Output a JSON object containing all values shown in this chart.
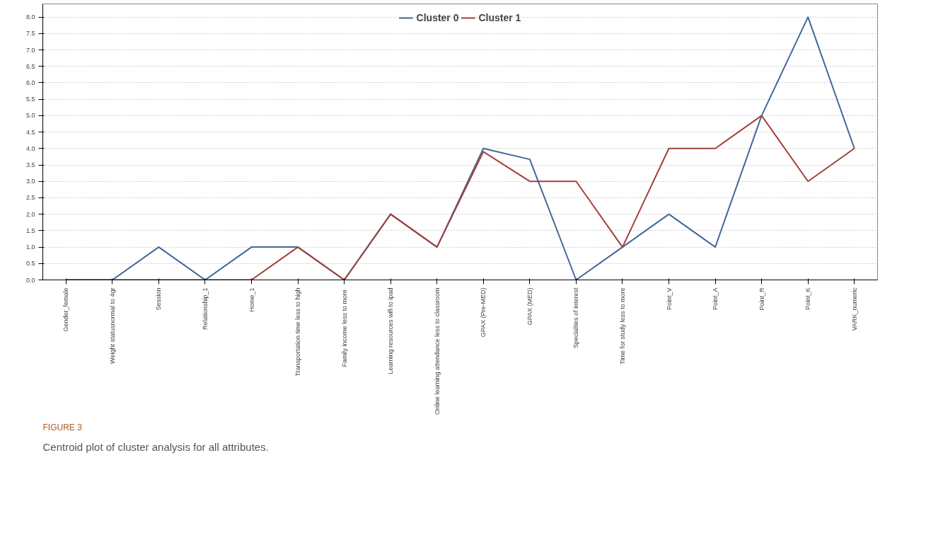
{
  "chart_data": {
    "type": "line",
    "categories": [
      "Gender_female",
      "Weight statusnormal to 4gr",
      "Session",
      "Relationship_1",
      "Home_1",
      "Transportation time less to high",
      "Family income  less to more",
      "Learning resources wifi to ipad",
      "Online learning attendance less to classroom",
      "GPAX (Pre-MED)",
      "GPAX (MED)",
      "Specialties of interest",
      "Time for study less to more",
      "Point_V",
      "Point_A",
      "Point_R",
      "Point_K",
      "VARK_numeric"
    ],
    "series": [
      {
        "name": "Cluster 0",
        "color": "#41689a",
        "values": [
          0,
          0,
          1,
          0,
          1,
          1,
          0,
          2,
          1,
          4.0,
          3.67,
          0,
          1,
          2,
          1,
          5,
          8,
          4
        ]
      },
      {
        "name": "Cluster 1",
        "color": "#a3403a",
        "values": [
          0,
          0,
          0,
          0,
          0,
          1,
          0,
          2,
          1,
          3.9,
          3.0,
          3.0,
          1,
          4,
          4,
          5,
          3,
          4
        ]
      }
    ],
    "ylim": [
      0,
      8.4
    ],
    "yticks": [
      {
        "value": 0,
        "label": "0.0"
      },
      0.5,
      {
        "value": 1,
        "label": "1.0"
      },
      1.5,
      {
        "value": 2,
        "label": "2.0"
      },
      2.5,
      {
        "value": 3,
        "label": "3.0"
      },
      3.5,
      {
        "value": 4,
        "label": "4.0"
      },
      4.5,
      {
        "value": 5,
        "label": "5.0"
      },
      5.5,
      {
        "value": 6,
        "label": "6.0"
      },
      6.5,
      {
        "value": 7,
        "label": "7.0"
      },
      7.5,
      {
        "value": 8,
        "label": "8.0"
      }
    ],
    "grid": "y",
    "legend": "top",
    "marker": "none",
    "line_style": "solid",
    "annotations": [
      "FIGURE 3",
      "Centroid plot of cluster analysis for all attributes."
    ]
  }
}
